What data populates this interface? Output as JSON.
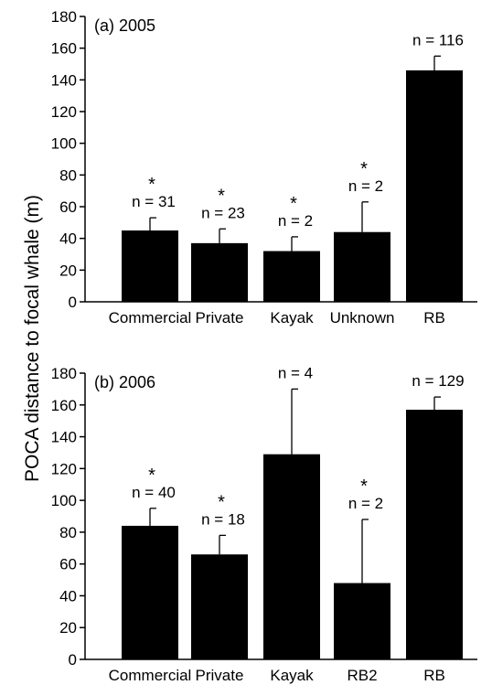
{
  "ylabel": "POCA distance to focal whale (m)",
  "chart_data": [
    {
      "type": "bar",
      "title": "(a) 2005",
      "categories": [
        "Commercial",
        "Private",
        "Kayak",
        "Unknown",
        "RB"
      ],
      "values": [
        45,
        37,
        32,
        44,
        146
      ],
      "error_upper": [
        53,
        46,
        41,
        63,
        155
      ],
      "n_labels": [
        "n = 31",
        "n = 23",
        "n = 2",
        "n = 2",
        "n = 116"
      ],
      "significant": [
        true,
        true,
        true,
        true,
        false
      ],
      "significance_marker": "*",
      "ylim": [
        0,
        180
      ],
      "yticks": [
        0,
        20,
        40,
        60,
        80,
        100,
        120,
        140,
        160,
        180
      ],
      "ylabel": "POCA distance to focal whale (m)",
      "xlabel": "",
      "grid": false,
      "legend": "none"
    },
    {
      "type": "bar",
      "title": "(b) 2006",
      "categories": [
        "Commercial",
        "Private",
        "Kayak",
        "RB2",
        "RB"
      ],
      "values": [
        84,
        66,
        129,
        48,
        157
      ],
      "error_upper": [
        95,
        78,
        170,
        88,
        165
      ],
      "n_labels": [
        "n = 40",
        "n = 18",
        "n = 4",
        "n = 2",
        "n = 129"
      ],
      "significant": [
        true,
        true,
        false,
        true,
        false
      ],
      "significance_marker": "*",
      "ylim": [
        0,
        180
      ],
      "yticks": [
        0,
        20,
        40,
        60,
        80,
        100,
        120,
        140,
        160,
        180
      ],
      "ylabel": "POCA distance to focal whale (m)",
      "xlabel": "",
      "grid": false,
      "legend": "none"
    }
  ]
}
